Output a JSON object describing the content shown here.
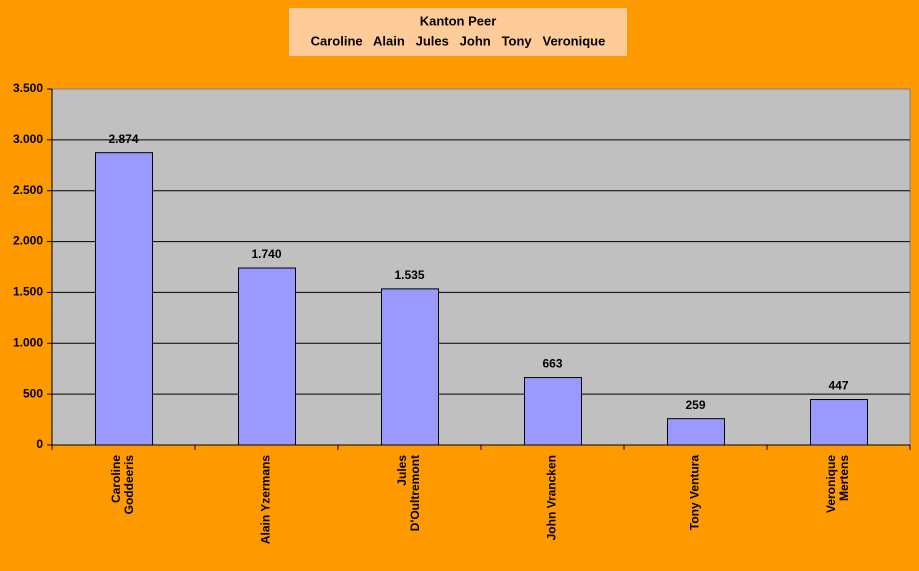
{
  "chart_data": {
    "type": "bar",
    "title": "Kanton Peer",
    "subtitle": "Caroline   Alain   Jules   John   Tony   Veronique",
    "categories": [
      "Caroline\nGoddeeris",
      "Alain Yzermans",
      "Jules\nD'Oultremont",
      "John Vrancken",
      "Tony Ventura",
      "Veronique\nMertens"
    ],
    "values": [
      2874,
      1740,
      1535,
      663,
      259,
      447
    ],
    "value_labels": [
      "2.874",
      "1.740",
      "1.535",
      "663",
      "259",
      "447"
    ],
    "color": "#9999ff",
    "ylim": [
      0,
      3500
    ],
    "yticks": [
      0,
      500,
      {
        "value": 1000,
        "label": "1.000"
      },
      {
        "value": 1500,
        "label": "1.500"
      },
      {
        "value": 2000,
        "label": "2.000"
      },
      {
        "value": 2500,
        "label": "2.500"
      },
      {
        "value": 3000,
        "label": "3.000"
      },
      {
        "value": 3500,
        "label": "3.500"
      }
    ],
    "grid": true
  }
}
